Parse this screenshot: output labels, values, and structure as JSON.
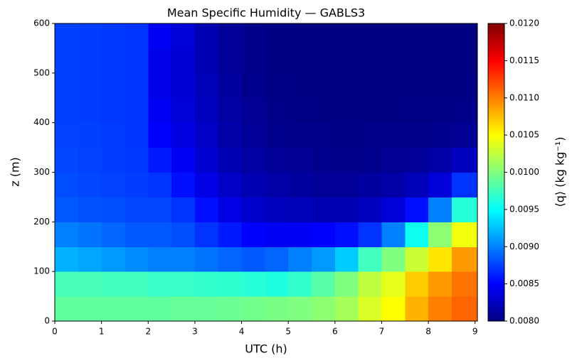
{
  "chart_data": {
    "type": "heatmap",
    "title": "Mean Specific Humidity — GABLS3",
    "x_label": "UTC (h)",
    "y_label": "z (m)",
    "colorbar_label": "⟨q⟩ (kg kg⁻¹)",
    "colormap": "jet",
    "x_bins": [
      0,
      0.5,
      1,
      1.5,
      2,
      2.5,
      3,
      3.5,
      4,
      4.5,
      5,
      5.5,
      6,
      6.5,
      7,
      7.5,
      8,
      8.5,
      9.05
    ],
    "y_bins": [
      0,
      50,
      100,
      150,
      200,
      250,
      300,
      350,
      400,
      450,
      500,
      550,
      600
    ],
    "values": [
      [
        0.00988,
        0.00988,
        0.00988,
        0.00988,
        0.00988,
        0.0099,
        0.0099,
        0.00992,
        0.00995,
        0.00998,
        0.01,
        0.01005,
        0.01015,
        0.01035,
        0.0105,
        0.0108,
        0.011,
        0.0111
      ],
      [
        0.00978,
        0.00978,
        0.00976,
        0.00975,
        0.00972,
        0.00972,
        0.0097,
        0.00968,
        0.00965,
        0.00962,
        0.0097,
        0.00985,
        0.01,
        0.01025,
        0.0104,
        0.0107,
        0.0109,
        0.01105
      ],
      [
        0.0092,
        0.00915,
        0.0091,
        0.00905,
        0.009,
        0.009,
        0.00895,
        0.0089,
        0.00885,
        0.0089,
        0.009,
        0.0091,
        0.0093,
        0.00975,
        0.01,
        0.0103,
        0.0106,
        0.0109
      ],
      [
        0.009,
        0.00895,
        0.0089,
        0.00885,
        0.00885,
        0.0088,
        0.0087,
        0.0086,
        0.0085,
        0.00845,
        0.00845,
        0.0085,
        0.00855,
        0.0087,
        0.009,
        0.00955,
        0.01005,
        0.01045
      ],
      [
        0.00885,
        0.00882,
        0.0088,
        0.00878,
        0.00878,
        0.0087,
        0.00855,
        0.0084,
        0.0083,
        0.00825,
        0.00822,
        0.0082,
        0.0082,
        0.00825,
        0.00835,
        0.00855,
        0.009,
        0.00965
      ],
      [
        0.0088,
        0.00878,
        0.00876,
        0.00874,
        0.0087,
        0.00855,
        0.0084,
        0.00828,
        0.0082,
        0.00816,
        0.00812,
        0.0081,
        0.0081,
        0.00812,
        0.00815,
        0.00822,
        0.00835,
        0.0087
      ],
      [
        0.00878,
        0.00876,
        0.00874,
        0.00872,
        0.0086,
        0.00845,
        0.00832,
        0.0082,
        0.00814,
        0.0081,
        0.00808,
        0.00806,
        0.00805,
        0.00806,
        0.00808,
        0.0081,
        0.00815,
        0.00825
      ],
      [
        0.00876,
        0.00875,
        0.00873,
        0.0087,
        0.0085,
        0.00838,
        0.00828,
        0.00816,
        0.0081,
        0.00806,
        0.00805,
        0.00804,
        0.00803,
        0.00804,
        0.00804,
        0.00805,
        0.00806,
        0.00808
      ],
      [
        0.00875,
        0.00874,
        0.00872,
        0.0087,
        0.00845,
        0.00835,
        0.00825,
        0.00814,
        0.00808,
        0.00804,
        0.00803,
        0.00802,
        0.00802,
        0.00802,
        0.00802,
        0.00803,
        0.00803,
        0.00804
      ],
      [
        0.00875,
        0.00874,
        0.00872,
        0.0087,
        0.00842,
        0.00833,
        0.00822,
        0.00812,
        0.00806,
        0.00803,
        0.00802,
        0.00802,
        0.00801,
        0.00801,
        0.00802,
        0.00802,
        0.00802,
        0.00802
      ],
      [
        0.00875,
        0.00874,
        0.00872,
        0.0087,
        0.00842,
        0.00833,
        0.0082,
        0.0081,
        0.00805,
        0.00802,
        0.00801,
        0.00801,
        0.00801,
        0.00801,
        0.00801,
        0.00801,
        0.00801,
        0.00801
      ],
      [
        0.00875,
        0.00874,
        0.00872,
        0.0087,
        0.00845,
        0.00835,
        0.0082,
        0.0081,
        0.00805,
        0.00802,
        0.00801,
        0.00801,
        0.00801,
        0.00801,
        0.00801,
        0.00801,
        0.00801,
        0.00801
      ]
    ],
    "xlim": [
      0,
      9.05
    ],
    "ylim": [
      0,
      600
    ],
    "xticks": [
      0,
      1,
      2,
      3,
      4,
      5,
      6,
      7,
      8,
      9
    ],
    "yticks": [
      0,
      100,
      200,
      300,
      400,
      500,
      600
    ],
    "clim": [
      0.008,
      0.012
    ],
    "cticks": [
      {
        "value": 0.008,
        "label": "0.0080"
      },
      0.0085,
      {
        "value": 0.009,
        "label": "0.0090"
      },
      0.0095,
      {
        "value": 0.01,
        "label": "0.0100"
      },
      0.0105,
      {
        "value": 0.011,
        "label": "0.0110"
      },
      0.0115,
      {
        "value": 0.012,
        "label": "0.0120"
      }
    ]
  }
}
